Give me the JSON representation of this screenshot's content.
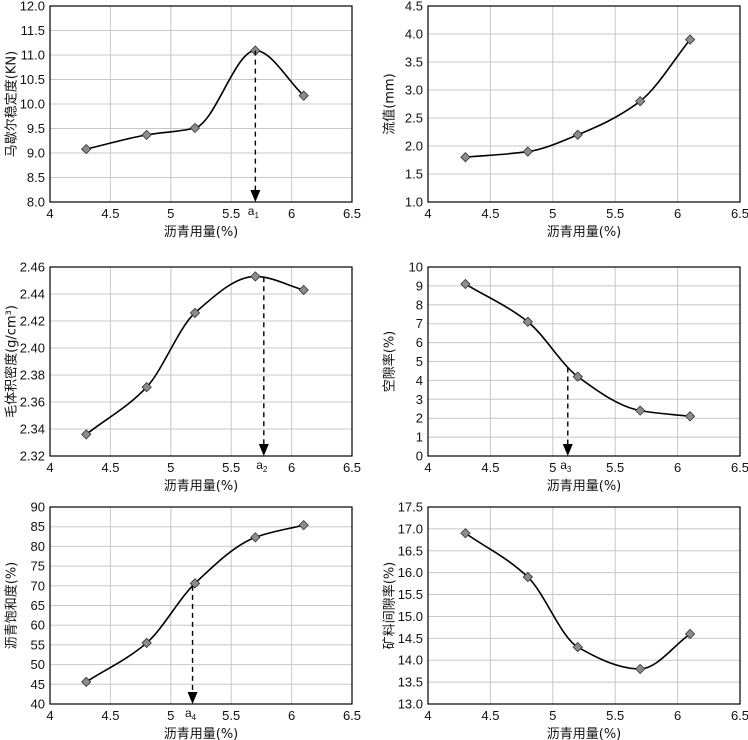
{
  "chart_data": [
    {
      "type": "line",
      "ylabel": "马歇尔稳定度(KN)",
      "xlabel": "沥青用量(%)",
      "xlim": [
        4,
        6.5
      ],
      "ylim": [
        8.0,
        12.0
      ],
      "xticks": [
        "4",
        "4.5",
        "5",
        "5.5",
        "6",
        "6.5"
      ],
      "yticks": [
        "8.0",
        "8.5",
        "9.0",
        "9.5",
        "10.0",
        "10.5",
        "11.0",
        "11.5",
        "12.0"
      ],
      "grid": true,
      "x": [
        4.3,
        4.8,
        5.2,
        5.7,
        6.1
      ],
      "y": [
        9.08,
        9.37,
        9.51,
        11.09,
        10.17
      ],
      "marker": {
        "label": "a",
        "sub": "1",
        "x": 5.7
      }
    },
    {
      "type": "line",
      "ylabel": "流值(mm)",
      "xlabel": "沥青用量(%)",
      "xlim": [
        4,
        6.5
      ],
      "ylim": [
        1.0,
        4.5
      ],
      "xticks": [
        "4",
        "4.5",
        "5",
        "5.5",
        "6",
        "6.5"
      ],
      "yticks": [
        "1.0",
        "1.5",
        "2.0",
        "2.5",
        "3.0",
        "3.5",
        "4.0",
        "4.5"
      ],
      "grid": true,
      "x": [
        4.3,
        4.8,
        5.2,
        5.7,
        6.1
      ],
      "y": [
        1.8,
        1.9,
        2.2,
        2.8,
        3.9
      ]
    },
    {
      "type": "line",
      "ylabel": "毛体积密度(g/cm³)",
      "xlabel": "沥青用量(%)",
      "xlim": [
        4,
        6.5
      ],
      "ylim": [
        2.32,
        2.46
      ],
      "xticks": [
        "4",
        "4.5",
        "5",
        "5.5",
        "6",
        "6.5"
      ],
      "yticks": [
        "2.32",
        "2.34",
        "2.36",
        "2.38",
        "2.40",
        "2.42",
        "2.44",
        "2.46"
      ],
      "grid": true,
      "x": [
        4.3,
        4.8,
        5.2,
        5.7,
        6.1
      ],
      "y": [
        2.336,
        2.371,
        2.426,
        2.453,
        2.443
      ],
      "marker": {
        "label": "a",
        "sub": "2",
        "x": 5.77
      }
    },
    {
      "type": "line",
      "ylabel": "空隙率(%)",
      "xlabel": "沥青用量(%)",
      "xlim": [
        4,
        6.5
      ],
      "ylim": [
        0,
        10
      ],
      "xticks": [
        "4",
        "4.5",
        "5",
        "5.5",
        "6",
        "6.5"
      ],
      "yticks": [
        "0",
        "1",
        "2",
        "3",
        "4",
        "5",
        "6",
        "7",
        "8",
        "9",
        "10"
      ],
      "grid": true,
      "x": [
        4.3,
        4.8,
        5.2,
        5.7,
        6.1
      ],
      "y": [
        9.1,
        7.1,
        4.2,
        2.4,
        2.1
      ],
      "marker": {
        "label": "a",
        "sub": "3",
        "x": 5.12
      }
    },
    {
      "type": "line",
      "ylabel": "沥青饱和度(%)",
      "xlabel": "沥青用量(%)",
      "xlim": [
        4,
        6.5
      ],
      "ylim": [
        40,
        90
      ],
      "xticks": [
        "4",
        "4.5",
        "5",
        "5.5",
        "6",
        "6.5"
      ],
      "yticks": [
        "40",
        "45",
        "50",
        "55",
        "60",
        "65",
        "70",
        "75",
        "80",
        "85",
        "90"
      ],
      "grid": true,
      "x": [
        4.3,
        4.8,
        5.2,
        5.7,
        6.1
      ],
      "y": [
        45.6,
        55.5,
        70.6,
        82.3,
        85.4
      ],
      "marker": {
        "label": "a",
        "sub": "4",
        "x": 5.18
      }
    },
    {
      "type": "line",
      "ylabel": "矿料间隙率(%)",
      "xlabel": "沥青用量(%)",
      "xlim": [
        4,
        6.5
      ],
      "ylim": [
        13.0,
        17.5
      ],
      "xticks": [
        "4",
        "4.5",
        "5",
        "5.5",
        "6",
        "6.5"
      ],
      "yticks": [
        "13.0",
        "13.5",
        "14.0",
        "14.5",
        "15.0",
        "15.5",
        "16.0",
        "16.5",
        "17.0",
        "17.5"
      ],
      "grid": true,
      "x": [
        4.3,
        4.8,
        5.2,
        5.7,
        6.1
      ],
      "y": [
        16.9,
        15.9,
        14.3,
        13.8,
        14.6
      ]
    }
  ]
}
